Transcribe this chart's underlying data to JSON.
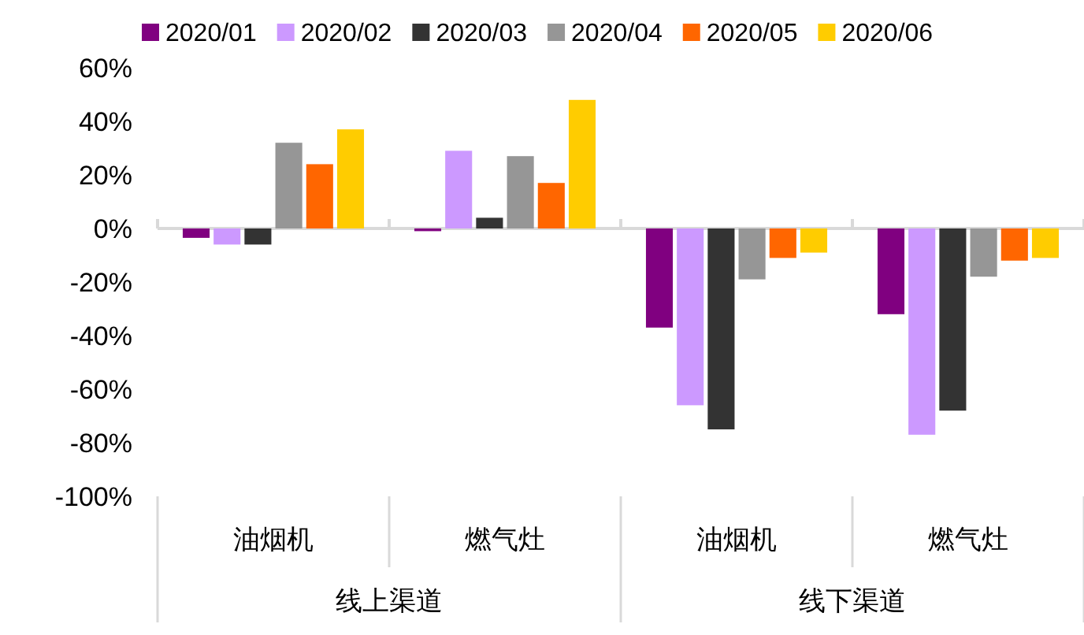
{
  "chart_data": {
    "type": "bar",
    "categories": [
      "油烟机",
      "燃气灶",
      "油烟机",
      "燃气灶"
    ],
    "annotations": [
      "线上渠道",
      "线下渠道"
    ],
    "series": [
      {
        "name": "2020/01",
        "color": "#800080",
        "values": [
          -3.5,
          -1,
          -37,
          -32
        ]
      },
      {
        "name": "2020/02",
        "color": "#cc99ff",
        "values": [
          -6,
          29,
          -66,
          -77
        ]
      },
      {
        "name": "2020/03",
        "color": "#333333",
        "values": [
          -6,
          4,
          -75,
          -68
        ]
      },
      {
        "name": "2020/04",
        "color": "#969696",
        "values": [
          32,
          27,
          -19,
          -18
        ]
      },
      {
        "name": "2020/05",
        "color": "#ff6600",
        "values": [
          24,
          17,
          -11,
          -12
        ]
      },
      {
        "name": "2020/06",
        "color": "#ffcc00",
        "values": [
          37,
          48,
          -9,
          -11
        ]
      }
    ],
    "ylim": [
      -100,
      60
    ],
    "yticks": [
      {
        "value": -100,
        "label": "-100%"
      },
      {
        "value": -80,
        "label": "-80%"
      },
      {
        "value": -60,
        "label": "-60%"
      },
      {
        "value": -40,
        "label": "-40%"
      },
      {
        "value": -20,
        "label": "-20%"
      },
      {
        "value": 0,
        "label": "0%"
      },
      {
        "value": 20,
        "label": "20%"
      },
      {
        "value": 40,
        "label": "40%"
      },
      {
        "value": 60,
        "label": "60%"
      }
    ],
    "ref_lines": [
      {
        "axis": "y",
        "value": 0,
        "color": "#d9d9d9"
      }
    ],
    "grid": false,
    "legend": "top"
  }
}
